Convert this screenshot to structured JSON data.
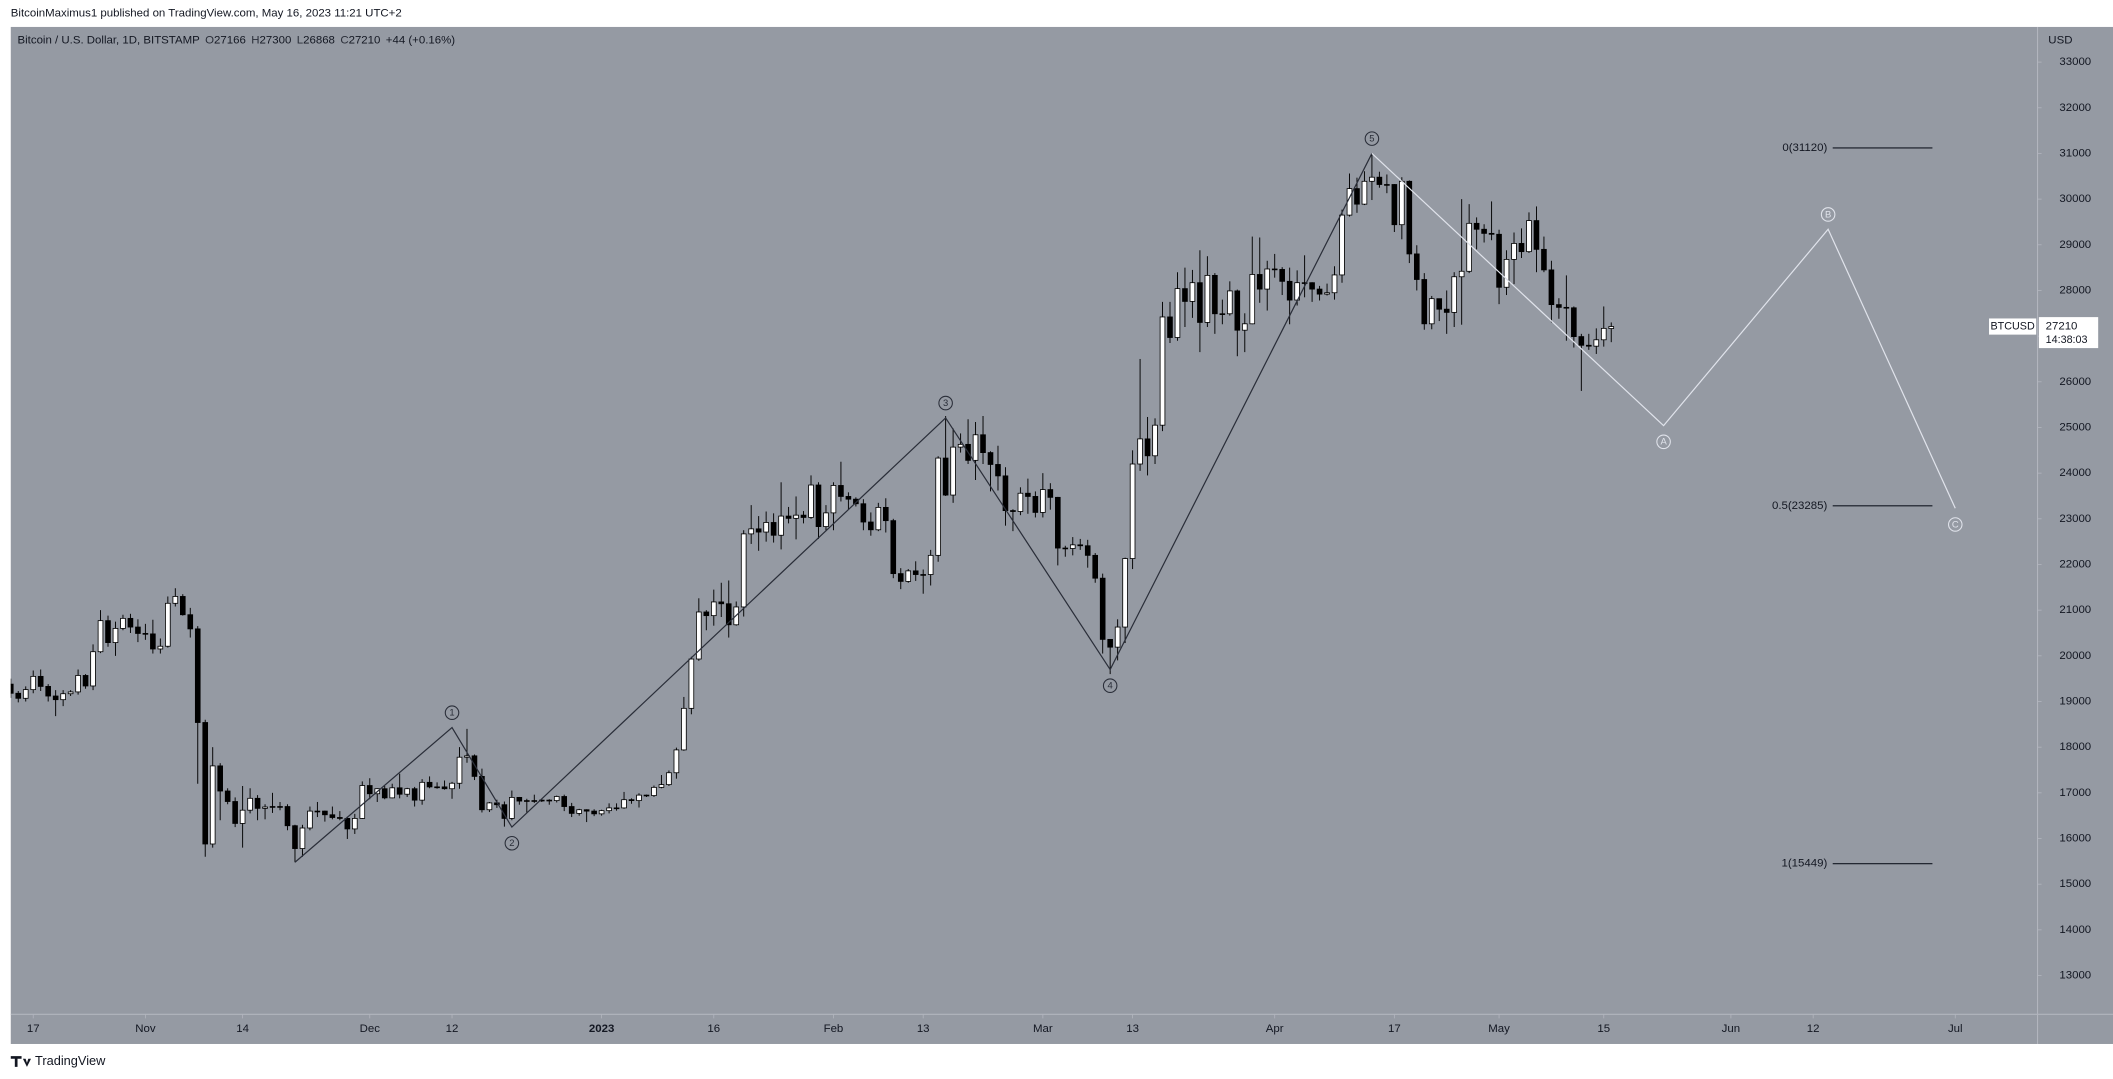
{
  "chart_data": {
    "type": "candlestick",
    "publisher": "BitcoinMaximus1 published on TradingView.com, May 16, 2023 11:21 UTC+2",
    "title": "Bitcoin / U.S. Dollar, 1D, BITSTAMP",
    "ohlc": [
      {
        "label": "O",
        "value": 27166
      },
      {
        "label": "H",
        "value": 27300
      },
      {
        "label": "L",
        "value": 26868
      },
      {
        "label": "C",
        "value": 27210
      }
    ],
    "change": "+44 (+0.16%)",
    "y_axis_label": "USD",
    "brand": "TradingView",
    "background": "#959aa3",
    "up_color": "#ffffff",
    "down_color": "#000000",
    "wick_color": "#000000",
    "grid": false,
    "x": [
      "2022-10-14",
      "2022-10-15",
      "2022-10-16",
      "2022-10-17",
      "2022-10-18",
      "2022-10-19",
      "2022-10-20",
      "2022-10-21",
      "2022-10-22",
      "2022-10-23",
      "2022-10-24",
      "2022-10-25",
      "2022-10-26",
      "2022-10-27",
      "2022-10-28",
      "2022-10-29",
      "2022-10-30",
      "2022-10-31",
      "2022-11-01",
      "2022-11-02",
      "2022-11-03",
      "2022-11-04",
      "2022-11-05",
      "2022-11-06",
      "2022-11-07",
      "2022-11-08",
      "2022-11-09",
      "2022-11-10",
      "2022-11-11",
      "2022-11-12",
      "2022-11-13",
      "2022-11-14",
      "2022-11-15",
      "2022-11-16",
      "2022-11-17",
      "2022-11-18",
      "2022-11-19",
      "2022-11-20",
      "2022-11-21",
      "2022-11-22",
      "2022-11-23",
      "2022-11-24",
      "2022-11-25",
      "2022-11-26",
      "2022-11-27",
      "2022-11-28",
      "2022-11-29",
      "2022-11-30",
      "2022-12-01",
      "2022-12-02",
      "2022-12-03",
      "2022-12-04",
      "2022-12-05",
      "2022-12-06",
      "2022-12-07",
      "2022-12-08",
      "2022-12-09",
      "2022-12-10",
      "2022-12-11",
      "2022-12-12",
      "2022-12-13",
      "2022-12-14",
      "2022-12-15",
      "2022-12-16",
      "2022-12-17",
      "2022-12-18",
      "2022-12-19",
      "2022-12-20",
      "2022-12-21",
      "2022-12-22",
      "2022-12-23",
      "2022-12-24",
      "2022-12-25",
      "2022-12-26",
      "2022-12-27",
      "2022-12-28",
      "2022-12-29",
      "2022-12-30",
      "2022-12-31",
      "2023-01-01",
      "2023-01-02",
      "2023-01-03",
      "2023-01-04",
      "2023-01-05",
      "2023-01-06",
      "2023-01-07",
      "2023-01-08",
      "2023-01-09",
      "2023-01-10",
      "2023-01-11",
      "2023-01-12",
      "2023-01-13",
      "2023-01-14",
      "2023-01-15",
      "2023-01-16",
      "2023-01-17",
      "2023-01-18",
      "2023-01-19",
      "2023-01-20",
      "2023-01-21",
      "2023-01-22",
      "2023-01-23",
      "2023-01-24",
      "2023-01-25",
      "2023-01-26",
      "2023-01-27",
      "2023-01-28",
      "2023-01-29",
      "2023-01-30",
      "2023-01-31",
      "2023-02-01",
      "2023-02-02",
      "2023-02-03",
      "2023-02-04",
      "2023-02-05",
      "2023-02-06",
      "2023-02-07",
      "2023-02-08",
      "2023-02-09",
      "2023-02-10",
      "2023-02-11",
      "2023-02-12",
      "2023-02-13",
      "2023-02-14",
      "2023-02-15",
      "2023-02-16",
      "2023-02-17",
      "2023-02-18",
      "2023-02-19",
      "2023-02-20",
      "2023-02-21",
      "2023-02-22",
      "2023-02-23",
      "2023-02-24",
      "2023-02-25",
      "2023-02-26",
      "2023-02-27",
      "2023-02-28",
      "2023-03-01",
      "2023-03-02",
      "2023-03-03",
      "2023-03-04",
      "2023-03-05",
      "2023-03-06",
      "2023-03-07",
      "2023-03-08",
      "2023-03-09",
      "2023-03-10",
      "2023-03-11",
      "2023-03-12",
      "2023-03-13",
      "2023-03-14",
      "2023-03-15",
      "2023-03-16",
      "2023-03-17",
      "2023-03-18",
      "2023-03-19",
      "2023-03-20",
      "2023-03-21",
      "2023-03-22",
      "2023-03-23",
      "2023-03-24",
      "2023-03-25",
      "2023-03-26",
      "2023-03-27",
      "2023-03-28",
      "2023-03-29",
      "2023-03-30",
      "2023-03-31",
      "2023-04-01",
      "2023-04-02",
      "2023-04-03",
      "2023-04-04",
      "2023-04-05",
      "2023-04-06",
      "2023-04-07",
      "2023-04-08",
      "2023-04-09",
      "2023-04-10",
      "2023-04-11",
      "2023-04-12",
      "2023-04-13",
      "2023-04-14",
      "2023-04-15",
      "2023-04-16",
      "2023-04-17",
      "2023-04-18",
      "2023-04-19",
      "2023-04-20",
      "2023-04-21",
      "2023-04-22",
      "2023-04-23",
      "2023-04-24",
      "2023-04-25",
      "2023-04-26",
      "2023-04-27",
      "2023-04-28",
      "2023-04-29",
      "2023-04-30",
      "2023-05-01",
      "2023-05-02",
      "2023-05-03",
      "2023-05-04",
      "2023-05-05",
      "2023-05-06",
      "2023-05-07",
      "2023-05-08",
      "2023-05-09",
      "2023-05-10",
      "2023-05-11",
      "2023-05-12",
      "2023-05-13",
      "2023-05-14",
      "2023-05-15",
      "2023-05-16"
    ],
    "open": [
      19380,
      19180,
      19070,
      19260,
      19550,
      19330,
      19120,
      19040,
      19170,
      19210,
      19570,
      19340,
      20090,
      20770,
      20290,
      20600,
      20820,
      20630,
      20490,
      20480,
      20150,
      20210,
      21150,
      21300,
      20900,
      20590,
      18540,
      15880,
      17590,
      17040,
      16810,
      16330,
      16620,
      16880,
      16660,
      16690,
      16700,
      16700,
      16280,
      15780,
      16230,
      16600,
      16600,
      16520,
      16460,
      16440,
      16210,
      16440,
      17160,
      16980,
      17090,
      16890,
      17110,
      16970,
      17090,
      16840,
      17230,
      17130,
      17130,
      17090,
      17210,
      17780,
      17810,
      17360,
      16630,
      16780,
      16740,
      16440,
      16900,
      16820,
      16830,
      16830,
      16840,
      16830,
      16920,
      16700,
      16550,
      16630,
      16600,
      16540,
      16610,
      16670,
      16670,
      16850,
      16830,
      16950,
      16940,
      17120,
      17180,
      17440,
      17940,
      18850,
      19930,
      20960,
      20880,
      21180,
      21140,
      20680,
      21070,
      22670,
      22780,
      22710,
      22920,
      22640,
      23060,
      23010,
      23080,
      23030,
      23740,
      22830,
      23130,
      23730,
      23490,
      23430,
      23330,
      22930,
      22760,
      23250,
      22960,
      21800,
      21630,
      21860,
      21780,
      21780,
      22200,
      24330,
      23520,
      24570,
      24630,
      24280,
      24840,
      24450,
      24190,
      23940,
      23180,
      23160,
      23560,
      23490,
      23140,
      23640,
      23470,
      22360,
      22350,
      22430,
      22410,
      22200,
      21700,
      20360,
      20190,
      20630,
      22130,
      24200,
      24750,
      24380,
      25050,
      27420,
      26970,
      28040,
      27760,
      28170,
      27300,
      28330,
      27490,
      27490,
      27990,
      27130,
      27270,
      28350,
      28030,
      28470,
      28460,
      28200,
      27790,
      28170,
      28170,
      28030,
      27920,
      27950,
      28340,
      29650,
      30230,
      29890,
      30390,
      30480,
      30320,
      30320,
      29440,
      30390,
      28800,
      28240,
      27270,
      27820,
      27590,
      27520,
      28300,
      28420,
      29470,
      29340,
      29250,
      29230,
      28070,
      28680,
      29030,
      28850,
      29530,
      28900,
      28450,
      27690,
      27630,
      27620,
      26990,
      26800,
      26780,
      26920,
      27166
    ],
    "high": [
      19500,
      19230,
      19330,
      19680,
      19700,
      19380,
      19250,
      19250,
      19250,
      19700,
      19600,
      20250,
      21000,
      20880,
      20750,
      20900,
      20920,
      20800,
      20700,
      20790,
      20380,
      21300,
      21480,
      21350,
      21050,
      20650,
      18600,
      18000,
      17650,
      17100,
      16900,
      17150,
      17100,
      16950,
      16750,
      17000,
      16800,
      16750,
      16300,
      16300,
      16700,
      16800,
      16610,
      16700,
      16600,
      16480,
      16540,
      17250,
      17320,
      17100,
      17150,
      17200,
      17420,
      17110,
      17130,
      17300,
      17360,
      17230,
      17270,
      17240,
      18000,
      18400,
      17840,
      17530,
      16800,
      16850,
      16810,
      17050,
      16910,
      16870,
      16960,
      16870,
      16860,
      16940,
      16960,
      16780,
      16650,
      16640,
      16640,
      16630,
      16770,
      16770,
      17020,
      16880,
      16990,
      16960,
      17160,
      17390,
      17490,
      17990,
      19100,
      19980,
      21260,
      21000,
      21450,
      21600,
      21650,
      21190,
      22750,
      23300,
      23060,
      23160,
      23120,
      23800,
      23260,
      23490,
      23170,
      23950,
      23800,
      23300,
      23800,
      24250,
      23580,
      23470,
      23430,
      23140,
      23350,
      23450,
      23000,
      21920,
      21900,
      22070,
      21890,
      22320,
      24370,
      25250,
      24980,
      24870,
      25180,
      25120,
      25250,
      24480,
      24600,
      24130,
      23210,
      23690,
      23880,
      23600,
      24000,
      23780,
      23480,
      22410,
      22600,
      22560,
      22540,
      22250,
      21800,
      20360,
      20800,
      22150,
      24500,
      26500,
      25230,
      25200,
      27750,
      27750,
      28400,
      28500,
      28450,
      28880,
      28750,
      28380,
      27800,
      28200,
      28020,
      27500,
      29180,
      29160,
      28650,
      28800,
      28510,
      28500,
      28440,
      28770,
      28180,
      28100,
      28150,
      28530,
      29770,
      30560,
      30470,
      30610,
      31000,
      30600,
      30540,
      30330,
      30480,
      30410,
      28990,
      28380,
      27880,
      27820,
      28000,
      28400,
      30000,
      29890,
      29600,
      29450,
      29950,
      29330,
      28880,
      29270,
      29360,
      29710,
      29840,
      29180,
      28650,
      27830,
      28330,
      27650,
      27050,
      27050,
      27170,
      27650,
      27300
    ],
    "low": [
      19080,
      18980,
      19000,
      19180,
      19230,
      19000,
      18680,
      18900,
      19120,
      19150,
      19280,
      19250,
      20060,
      20200,
      20000,
      20560,
      20500,
      20300,
      20350,
      20050,
      20050,
      20180,
      21080,
      20880,
      20400,
      17200,
      15600,
      15800,
      16400,
      16750,
      16250,
      15800,
      16550,
      16400,
      16420,
      16560,
      16620,
      16180,
      15480,
      15600,
      16180,
      16470,
      16370,
      16420,
      16400,
      15990,
      16100,
      16430,
      16860,
      16800,
      16860,
      16880,
      16880,
      16910,
      16700,
      16740,
      17100,
      17090,
      17070,
      16870,
      17090,
      17660,
      17280,
      16570,
      16580,
      16670,
      16260,
      16400,
      16740,
      16560,
      16780,
      16800,
      16740,
      16790,
      16600,
      16470,
      16500,
      16360,
      16490,
      16500,
      16550,
      16610,
      16650,
      16760,
      16680,
      16910,
      16910,
      17100,
      17150,
      17310,
      17920,
      18720,
      19890,
      20560,
      20660,
      20850,
      20400,
      20660,
      20860,
      22450,
      22300,
      22500,
      22480,
      22330,
      22900,
      22550,
      22900,
      23000,
      22560,
      22730,
      22750,
      23380,
      23200,
      23270,
      22750,
      22630,
      22730,
      22700,
      21700,
      21460,
      21600,
      21640,
      21360,
      21540,
      22060,
      23500,
      23350,
      24450,
      24200,
      23850,
      24200,
      23600,
      23620,
      22850,
      22730,
      23080,
      23110,
      23030,
      23030,
      23200,
      21980,
      22170,
      22200,
      22320,
      21930,
      21600,
      20050,
      19600,
      19900,
      20280,
      21900,
      24050,
      23950,
      24200,
      24920,
      26850,
      26900,
      27200,
      27400,
      26650,
      27200,
      27050,
      27260,
      27450,
      26560,
      26650,
      27260,
      27730,
      27560,
      28280,
      27900,
      27260,
      27670,
      27850,
      27750,
      27780,
      27890,
      27800,
      28170,
      29620,
      29700,
      29870,
      29980,
      30250,
      30130,
      29280,
      29120,
      28600,
      28000,
      27140,
      27150,
      27330,
      27050,
      27200,
      27250,
      28380,
      28900,
      29050,
      29100,
      27700,
      27900,
      28140,
      28710,
      28820,
      28400,
      28400,
      27300,
      27380,
      26900,
      26750,
      25800,
      26700,
      26610,
      26770,
      26868
    ],
    "close": [
      19180,
      19070,
      19260,
      19550,
      19330,
      19120,
      19040,
      19170,
      19210,
      19570,
      19340,
      20090,
      20770,
      20290,
      20600,
      20820,
      20630,
      20490,
      20480,
      20150,
      20210,
      21150,
      21300,
      20900,
      20590,
      18540,
      15880,
      17590,
      17040,
      16810,
      16330,
      16620,
      16880,
      16660,
      16690,
      16700,
      16700,
      16280,
      15780,
      16230,
      16600,
      16600,
      16520,
      16460,
      16440,
      16210,
      16440,
      17160,
      16980,
      17090,
      16890,
      17110,
      16970,
      17090,
      16840,
      17230,
      17130,
      17130,
      17090,
      17210,
      17780,
      17810,
      17360,
      16630,
      16780,
      16740,
      16440,
      16900,
      16820,
      16830,
      16830,
      16840,
      16830,
      16920,
      16700,
      16550,
      16630,
      16600,
      16540,
      16610,
      16670,
      16670,
      16850,
      16830,
      16950,
      16940,
      17120,
      17180,
      17440,
      17940,
      18850,
      19930,
      20960,
      20880,
      21180,
      21140,
      20680,
      21070,
      22670,
      22780,
      22710,
      22920,
      22640,
      23060,
      23010,
      23080,
      23030,
      23740,
      22830,
      23130,
      23730,
      23490,
      23430,
      23330,
      22930,
      22760,
      23250,
      22960,
      21800,
      21630,
      21860,
      21780,
      21780,
      22200,
      24330,
      23520,
      24570,
      24630,
      24280,
      24840,
      24450,
      24190,
      23940,
      23180,
      23160,
      23560,
      23490,
      23140,
      23640,
      23470,
      22360,
      22350,
      22430,
      22410,
      22200,
      21700,
      20360,
      20190,
      20630,
      22130,
      24200,
      24750,
      24380,
      25050,
      27420,
      26970,
      28040,
      27760,
      28170,
      27300,
      28330,
      27490,
      27490,
      27990,
      27130,
      27270,
      28350,
      28030,
      28470,
      28460,
      28200,
      27790,
      28170,
      28170,
      28030,
      27920,
      27950,
      28340,
      29650,
      30230,
      29890,
      30390,
      30480,
      30320,
      30320,
      29440,
      30390,
      28800,
      28240,
      27270,
      27820,
      27590,
      27520,
      28300,
      28420,
      29470,
      29340,
      29250,
      29230,
      28070,
      28680,
      29030,
      28850,
      29530,
      28900,
      28450,
      27690,
      27630,
      27620,
      26990,
      26800,
      26780,
      26920,
      27170,
      27210
    ],
    "xlim": [
      "2022-10-14",
      "2023-07-12"
    ],
    "xticks": [
      {
        "value": "2022-10-17",
        "label": "17"
      },
      {
        "value": "2022-11-01",
        "label": "Nov"
      },
      {
        "value": "2022-11-14",
        "label": "14"
      },
      {
        "value": "2022-12-01",
        "label": "Dec"
      },
      {
        "value": "2022-12-12",
        "label": "12"
      },
      {
        "value": "2023-01-01",
        "label": "2023"
      },
      {
        "value": "2023-01-16",
        "label": "16"
      },
      {
        "value": "2023-02-01",
        "label": "Feb"
      },
      {
        "value": "2023-02-13",
        "label": "13"
      },
      {
        "value": "2023-03-01",
        "label": "Mar"
      },
      {
        "value": "2023-03-13",
        "label": "13"
      },
      {
        "value": "2023-04-01",
        "label": "Apr"
      },
      {
        "value": "2023-04-17",
        "label": "17"
      },
      {
        "value": "2023-05-01",
        "label": "May"
      },
      {
        "value": "2023-05-15",
        "label": "15"
      },
      {
        "value": "2023-06-01",
        "label": "Jun"
      },
      {
        "value": "2023-06-12",
        "label": "12"
      },
      {
        "value": "2023-07-01",
        "label": "Jul"
      }
    ],
    "ylim": [
      12150,
      33770
    ],
    "yticks": [
      13000,
      14000,
      15000,
      16000,
      17000,
      18000,
      19000,
      20000,
      21000,
      22000,
      23000,
      24000,
      25000,
      26000,
      27000,
      28000,
      29000,
      30000,
      31000,
      32000,
      33000
    ],
    "last_price": {
      "symbol": "BTCUSD",
      "value": 27210,
      "countdown": "14:38:03"
    },
    "fib_levels": {
      "color": "#131722",
      "values": [
        31120,
        23285,
        15449
      ],
      "value_labels": [
        "0(31120)",
        "0.5(23285)",
        "1(15449)"
      ]
    },
    "waves": [
      {
        "color": "#2a2e39",
        "x": [
          "2022-11-21",
          "2022-12-12",
          "2022-12-20",
          "2023-02-16",
          "2023-03-10",
          "2023-04-14"
        ],
        "y": [
          15480,
          18430,
          16250,
          25210,
          19700,
          31000
        ],
        "labels": [
          null,
          "1",
          "2",
          "3",
          "4",
          "5"
        ]
      },
      {
        "color": "#e0e3eb",
        "x": [
          "2023-04-14",
          "2023-05-23",
          "2023-06-14",
          "2023-07-01"
        ],
        "y": [
          31000,
          25040,
          29340,
          23230
        ],
        "labels": [
          null,
          "A",
          "B",
          "C"
        ]
      }
    ]
  }
}
